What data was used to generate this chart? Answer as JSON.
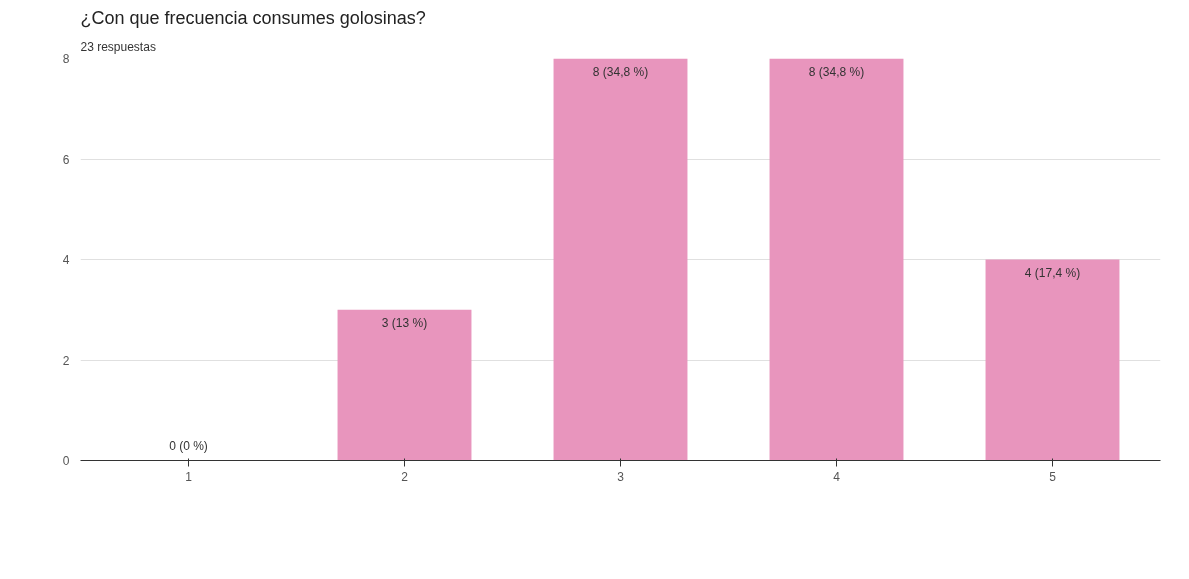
{
  "chart_data": {
    "type": "bar",
    "title": "¿Con que frecuencia consumes golosinas?",
    "subtitle": "23 respuestas",
    "categories": [
      "1",
      "2",
      "3",
      "4",
      "5"
    ],
    "values": [
      0,
      3,
      8,
      8,
      4
    ],
    "value_labels": [
      "0 (0 %)",
      "3 (13 %)",
      "8 (34,8 %)",
      "8 (34,8 %)",
      "4 (17,4 %)"
    ],
    "color": "#e895bd",
    "ylim": [
      0,
      8
    ],
    "yticks": [
      0,
      2,
      4,
      6,
      8
    ],
    "grid": "y"
  }
}
